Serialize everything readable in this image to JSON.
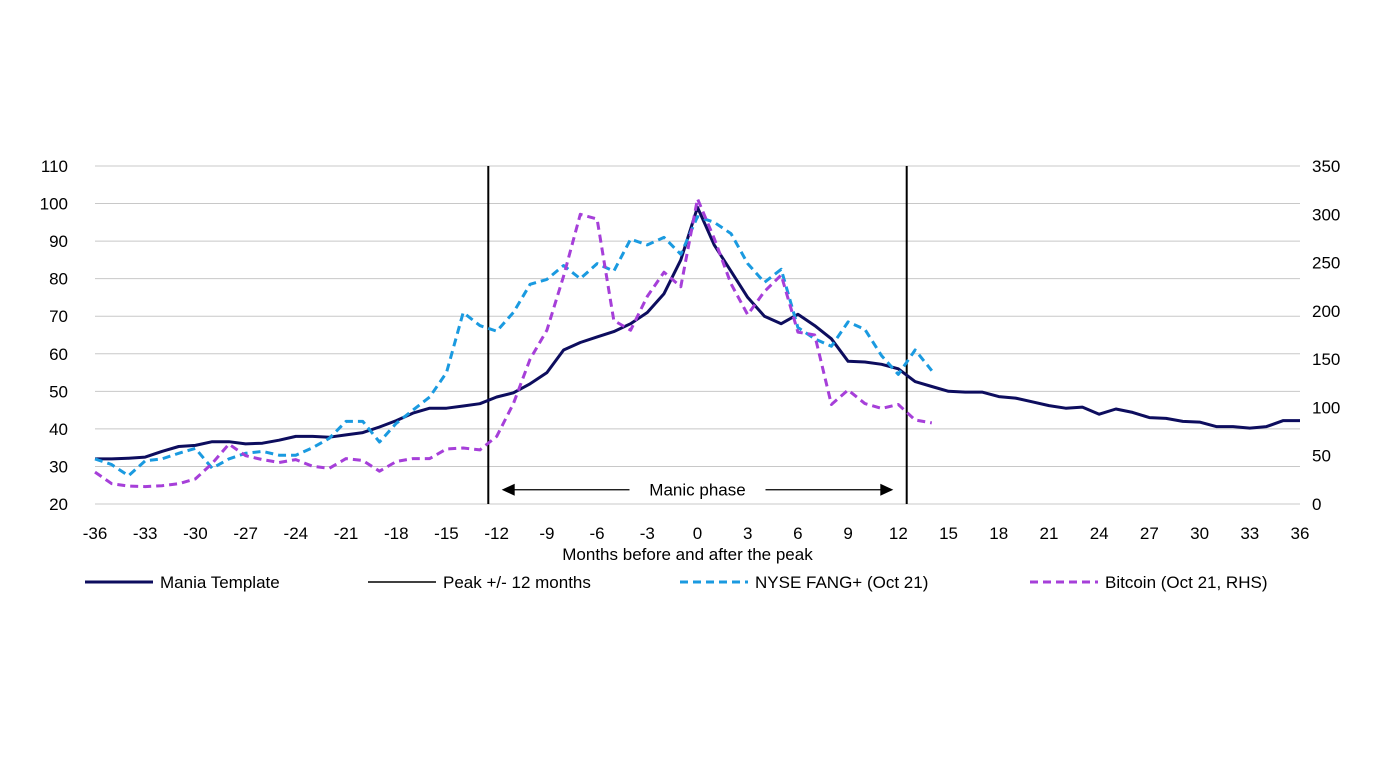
{
  "chart_data": {
    "type": "line",
    "title": "",
    "xlabel": "Months before and after the peak",
    "ylabel": "",
    "y2label": "",
    "xlim": [
      -36,
      36
    ],
    "ylim": [
      20,
      110
    ],
    "y2lim": [
      0,
      350
    ],
    "x_ticks": [
      -36,
      -33,
      -30,
      -27,
      -24,
      -21,
      -18,
      -15,
      -12,
      -9,
      -6,
      -3,
      0,
      3,
      6,
      9,
      12,
      15,
      18,
      21,
      24,
      27,
      30,
      33,
      36
    ],
    "y_ticks": [
      20,
      30,
      40,
      50,
      60,
      70,
      80,
      90,
      100,
      110
    ],
    "y2_ticks": [
      0,
      50,
      100,
      150,
      200,
      250,
      300,
      350
    ],
    "grid": "horizontal",
    "legend_position": "bottom",
    "vlines": [
      {
        "x": -12.5,
        "series": "Peak +/- 12 months"
      },
      {
        "x": 12.5,
        "series": "Peak +/- 12 months"
      }
    ],
    "annotation": {
      "text": "Manic phase",
      "x_from": -11.7,
      "x_to": 11.7,
      "y": 23.8
    },
    "series": [
      {
        "name": "Mania Template",
        "axis": "left",
        "color": "#0d0d5e",
        "style": "solid",
        "x": [
          -36,
          -35,
          -34,
          -33,
          -32,
          -31,
          -30,
          -29,
          -28,
          -27,
          -26,
          -25,
          -24,
          -23,
          -22,
          -21,
          -20,
          -19,
          -18,
          -17,
          -16,
          -15,
          -14,
          -13,
          -12,
          -11,
          -10,
          -9,
          -8,
          -7,
          -6,
          -5,
          -4,
          -3,
          -2,
          -1,
          0,
          1,
          2,
          3,
          4,
          5,
          6,
          7,
          8,
          9,
          10,
          11,
          12,
          13,
          14,
          15,
          16,
          17,
          18,
          19,
          20,
          21,
          22,
          23,
          24,
          25,
          26,
          27,
          28,
          29,
          30,
          31,
          32,
          33,
          34,
          35,
          36
        ],
        "values": [
          32,
          32,
          32.2,
          32.5,
          34,
          35.3,
          35.6,
          36.6,
          36.6,
          36,
          36.2,
          37,
          38,
          38,
          37.8,
          38.4,
          39,
          40.5,
          42.2,
          44.2,
          45.5,
          45.5,
          46.1,
          46.7,
          48.5,
          49.6,
          52,
          55,
          61,
          63,
          64.5,
          65.9,
          68,
          71,
          76,
          85,
          99,
          89,
          82,
          75,
          70,
          68,
          70.5,
          67.5,
          64,
          58,
          57.8,
          57.2,
          56,
          52.6,
          51.3,
          50,
          49.8,
          49.8,
          48.6,
          48.2,
          47.2,
          46.2,
          45.5,
          45.8,
          43.9,
          45.3,
          44.4,
          43,
          42.8,
          42,
          41.8,
          40.6,
          40.6,
          40.2,
          40.6,
          42.2,
          42.2
        ]
      },
      {
        "name": "Peak +/- 12 months",
        "axis": "left",
        "color": "#000000",
        "style": "solid-thin",
        "x": [],
        "values": []
      },
      {
        "name": "NYSE FANG+ (Oct 21)",
        "axis": "left",
        "color": "#1a9ae0",
        "style": "dashed",
        "x": [
          -36,
          -35,
          -34,
          -33,
          -32,
          -31,
          -30,
          -29,
          -28,
          -27,
          -26,
          -25,
          -24,
          -23,
          -22,
          -21,
          -20,
          -19,
          -18,
          -17,
          -16,
          -15,
          -14,
          -13,
          -12,
          -11,
          -10,
          -9,
          -8,
          -7,
          -6,
          -5,
          -4,
          -3,
          -2,
          -1,
          0,
          1,
          2,
          3,
          4,
          5,
          6,
          7,
          8,
          9,
          10,
          11,
          12,
          13,
          14
        ],
        "values": [
          32,
          30.5,
          27.5,
          31.5,
          32,
          33.5,
          34.8,
          29.5,
          32,
          33.5,
          34,
          33,
          33,
          35,
          37.5,
          42,
          42,
          36.5,
          41.5,
          45,
          48.5,
          55,
          71,
          67.5,
          66,
          71,
          78.5,
          79.8,
          83.5,
          80,
          84,
          82,
          90.5,
          89,
          91,
          86.5,
          96.5,
          95,
          92,
          84,
          79,
          82.5,
          67,
          64,
          62,
          68.5,
          66.5,
          59.5,
          54.5,
          61,
          55.5
        ]
      },
      {
        "name": "Bitcoin (Oct 21, RHS)",
        "axis": "right",
        "color": "#a63fd9",
        "style": "dashed",
        "x": [
          -36,
          -35,
          -34,
          -33,
          -32,
          -31,
          -30,
          -29,
          -28,
          -27,
          -26,
          -25,
          -24,
          -23,
          -22,
          -21,
          -20,
          -19,
          -18,
          -17,
          -16,
          -15,
          -14,
          -13,
          -12,
          -11,
          -10,
          -9,
          -8,
          -7,
          -6,
          -5,
          -4,
          -3,
          -2,
          -1,
          0,
          1,
          2,
          3,
          4,
          5,
          6,
          7,
          8,
          9,
          10,
          11,
          12,
          13,
          14
        ],
        "values": [
          33,
          21,
          18.5,
          18,
          19,
          21,
          26,
          42,
          62,
          50,
          46,
          43,
          46,
          39,
          37,
          47,
          45,
          34,
          44,
          47,
          47,
          57,
          58,
          56,
          70,
          104,
          150,
          180,
          236,
          300,
          295,
          190,
          180,
          215,
          240,
          225,
          316,
          275,
          228,
          196,
          220,
          237,
          178,
          175,
          103,
          118,
          104,
          99,
          103,
          87,
          84
        ]
      }
    ]
  }
}
